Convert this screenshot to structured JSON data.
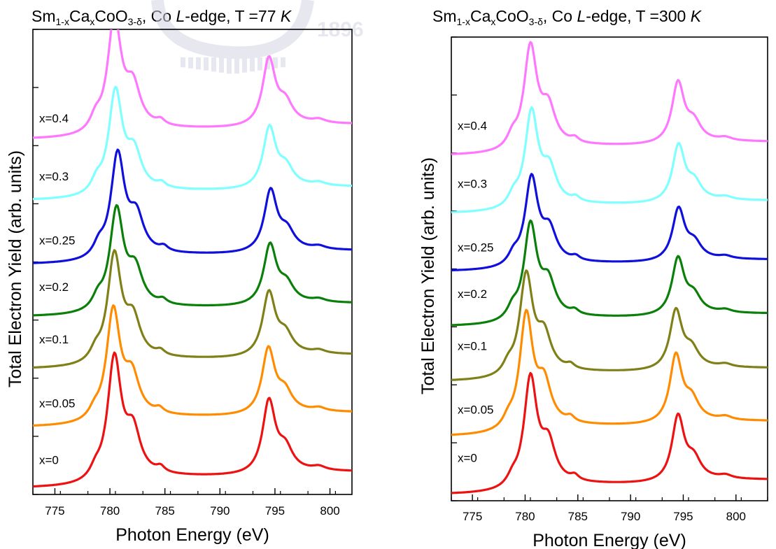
{
  "watermark": {
    "year": "1896",
    "color": "#dcdce8"
  },
  "chart_data": [
    {
      "type": "line",
      "title": {
        "formula_prefix": "Sm",
        "formula_sub1": "1-x",
        "formula_ca": "Ca",
        "formula_sub2": "x",
        "formula_coo": "CoO",
        "formula_sub3": "3-δ",
        "edge_pre": ", Co ",
        "edge_letter": "L",
        "edge_post": "-edge, T =77 ",
        "unit": "K"
      },
      "xlabel": "Photon Energy (eV)",
      "ylabel": "Total Electron Yield (arb. units)",
      "xlim": [
        773,
        802
      ],
      "xticks": [
        775,
        780,
        785,
        790,
        795,
        800
      ],
      "ylim": [
        0,
        8
      ],
      "series": [
        {
          "name": "x=0",
          "color": "#ee1111",
          "offset": 0.1,
          "scale": 1.28,
          "shift": 0.1,
          "amp": [
            0.2,
            2.6,
            2.5
          ],
          "tail": [
            0.3,
            0.2,
            0.15
          ]
        },
        {
          "name": "x=0.05",
          "color": "#ff8c00",
          "offset": 1.15,
          "scale": 1.15,
          "shift": 0.0,
          "amp": [
            0.2,
            2.6,
            2.2
          ],
          "tail": [
            0.3,
            0.2,
            0.2
          ]
        },
        {
          "name": "x=0.1",
          "color": "#808018",
          "offset": 2.15,
          "scale": 1.12,
          "shift": 0.1,
          "amp": [
            0.25,
            2.6,
            2.2
          ],
          "tail": [
            0.3,
            0.2,
            0.2
          ]
        },
        {
          "name": "x=0.2",
          "color": "#0a800a",
          "offset": 3.05,
          "scale": 1.05,
          "shift": 0.3,
          "amp": [
            0.3,
            2.6,
            2.2
          ],
          "tail": [
            0.3,
            0.2,
            0.2
          ]
        },
        {
          "name": "x=0.25",
          "color": "#1010dd",
          "offset": 3.95,
          "scale": 1.08,
          "shift": 0.4,
          "amp": [
            0.3,
            2.6,
            2.2
          ],
          "tail": [
            0.3,
            0.2,
            0.2
          ]
        },
        {
          "name": "x=0.3",
          "color": "#7fffff",
          "offset": 5.05,
          "scale": 1.07,
          "shift": 0.2,
          "amp": [
            0.3,
            2.6,
            2.2
          ],
          "tail": [
            0.3,
            0.2,
            0.2
          ]
        },
        {
          "name": "x=0.4",
          "color": "#ff77ff",
          "offset": 6.1,
          "scale": 1.18,
          "shift": 0.1,
          "amp": [
            0.3,
            2.6,
            2.2
          ],
          "tail": [
            0.3,
            0.2,
            0.2
          ]
        }
      ]
    },
    {
      "type": "line",
      "title": {
        "formula_prefix": "Sm",
        "formula_sub1": "1-x",
        "formula_ca": "Ca",
        "formula_sub2": "x",
        "formula_coo": "CoO",
        "formula_sub3": "3-δ",
        "edge_pre": ", Co ",
        "edge_letter": "L",
        "edge_post": "-edge, T =300 ",
        "unit": "K"
      },
      "xlabel": "Photon Energy (eV)",
      "ylabel": "Total Electron Yield (arb. units)",
      "xlim": [
        773,
        803
      ],
      "xticks": [
        775,
        780,
        785,
        790,
        795,
        800
      ],
      "ylim": [
        0,
        8
      ],
      "series": [
        {
          "name": "x=0",
          "color": "#ee1111",
          "offset": 0.1,
          "scale": 1.15,
          "shift": 0.2,
          "amp": [
            0.2,
            2.6,
            2.5
          ],
          "tail": [
            0.3,
            0.2,
            0.15
          ]
        },
        {
          "name": "x=0.05",
          "color": "#ff8c00",
          "offset": 1.1,
          "scale": 1.2,
          "shift": -0.2,
          "amp": [
            0.2,
            2.6,
            2.2
          ],
          "tail": [
            0.3,
            0.2,
            0.2
          ]
        },
        {
          "name": "x=0.1",
          "color": "#808018",
          "offset": 2.05,
          "scale": 1.05,
          "shift": -0.2,
          "amp": [
            0.25,
            2.6,
            2.2
          ],
          "tail": [
            0.3,
            0.2,
            0.2
          ]
        },
        {
          "name": "x=0.2",
          "color": "#0a800a",
          "offset": 3.0,
          "scale": 1.0,
          "shift": 0.2,
          "amp": [
            0.3,
            2.6,
            2.2
          ],
          "tail": [
            0.3,
            0.2,
            0.2
          ]
        },
        {
          "name": "x=0.25",
          "color": "#1010dd",
          "offset": 3.95,
          "scale": 0.92,
          "shift": 0.3,
          "amp": [
            0.3,
            2.6,
            2.2
          ],
          "tail": [
            0.3,
            0.2,
            0.2
          ]
        },
        {
          "name": "x=0.3",
          "color": "#7fffff",
          "offset": 4.95,
          "scale": 1.0,
          "shift": 0.3,
          "amp": [
            0.3,
            2.6,
            2.2
          ],
          "tail": [
            0.3,
            0.2,
            0.2
          ]
        },
        {
          "name": "x=0.4",
          "color": "#ff77ff",
          "offset": 5.95,
          "scale": 1.07,
          "shift": 0.2,
          "amp": [
            0.3,
            2.6,
            2.2
          ],
          "tail": [
            0.3,
            0.2,
            0.2
          ]
        }
      ]
    }
  ]
}
